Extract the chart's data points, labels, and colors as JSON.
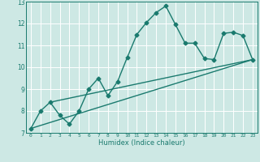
{
  "title": "",
  "xlabel": "Humidex (Indice chaleur)",
  "bg_color": "#cde8e4",
  "grid_color": "#ffffff",
  "line_color": "#1a7a6e",
  "marker": "D",
  "marker_size": 2.5,
  "line_width": 1.0,
  "xlim": [
    -0.5,
    23.5
  ],
  "ylim": [
    7,
    13
  ],
  "xticks": [
    0,
    1,
    2,
    3,
    4,
    5,
    6,
    7,
    8,
    9,
    10,
    11,
    12,
    13,
    14,
    15,
    16,
    17,
    18,
    19,
    20,
    21,
    22,
    23
  ],
  "yticks": [
    7,
    8,
    9,
    10,
    11,
    12,
    13
  ],
  "series": [
    [
      0,
      7.2
    ],
    [
      1,
      8.0
    ],
    [
      2,
      8.4
    ],
    [
      3,
      7.8
    ],
    [
      4,
      7.4
    ],
    [
      5,
      8.0
    ],
    [
      6,
      9.0
    ],
    [
      7,
      9.5
    ],
    [
      8,
      8.7
    ],
    [
      9,
      9.35
    ],
    [
      10,
      10.45
    ],
    [
      11,
      11.5
    ],
    [
      12,
      12.05
    ],
    [
      13,
      12.5
    ],
    [
      14,
      12.8
    ],
    [
      15,
      11.95
    ],
    [
      16,
      11.1
    ],
    [
      17,
      11.1
    ],
    [
      18,
      10.4
    ],
    [
      19,
      10.35
    ],
    [
      20,
      11.55
    ],
    [
      21,
      11.6
    ],
    [
      22,
      11.45
    ],
    [
      23,
      10.35
    ]
  ],
  "line2_x": [
    0,
    23
  ],
  "line2_y": [
    7.2,
    10.35
  ],
  "line3_x": [
    2,
    23
  ],
  "line3_y": [
    8.4,
    10.35
  ]
}
